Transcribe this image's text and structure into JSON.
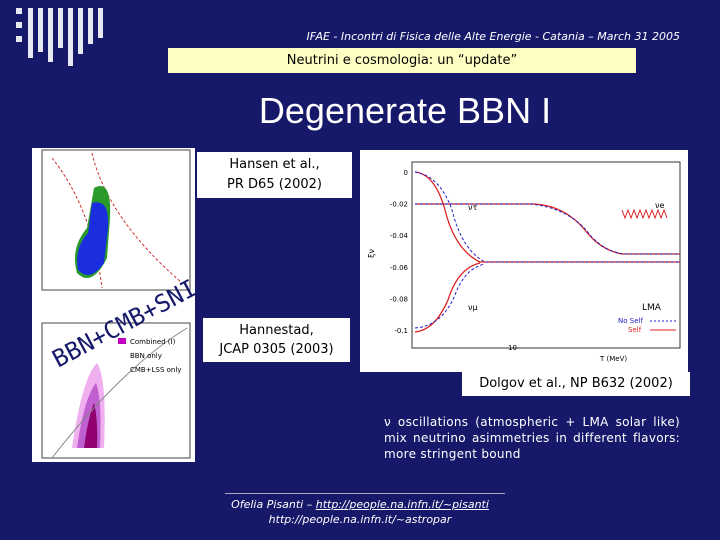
{
  "header": {
    "conference": "IFAE - Incontri di Fisica delle Alte Energie - Catania – March 31 2005",
    "banner": "Neutrini e cosmologia: un “update”"
  },
  "title": "Degenerate BBN I",
  "left_figure": {
    "label": "BBN+CMB+SNIa",
    "legend": [
      "Combined (I)",
      "BBN only",
      "CMB+LSS only"
    ]
  },
  "citations": {
    "hansen": [
      "Hansen et al.,",
      "PR D65 (2002)"
    ],
    "hannestad": [
      "Hannestad,",
      "JCAP 0305 (2003)"
    ],
    "dolgov": "Dolgov et al., NP B632 (2002)"
  },
  "right_figure": {
    "yticks": [
      "0",
      "-0.02",
      "-0.04",
      "-0.06",
      "-0.08",
      "-0.1"
    ],
    "xtick": "10",
    "xlabel": "T (MeV)",
    "ylabel": "ξν",
    "curve_labels": [
      "ντ",
      "νe",
      "νμ"
    ],
    "legend": [
      "LMA",
      "No Self",
      "Self"
    ]
  },
  "note": "ν oscillations (atmospheric + LMA solar like) mix neutrino asimmetries in different flavors: more stringent bound",
  "footer": {
    "author": "Ofelia Pisanti – ",
    "link": "http://people.na.infn.it/~pisanti",
    "link2": "http://people.na.infn.it/~astropar"
  }
}
